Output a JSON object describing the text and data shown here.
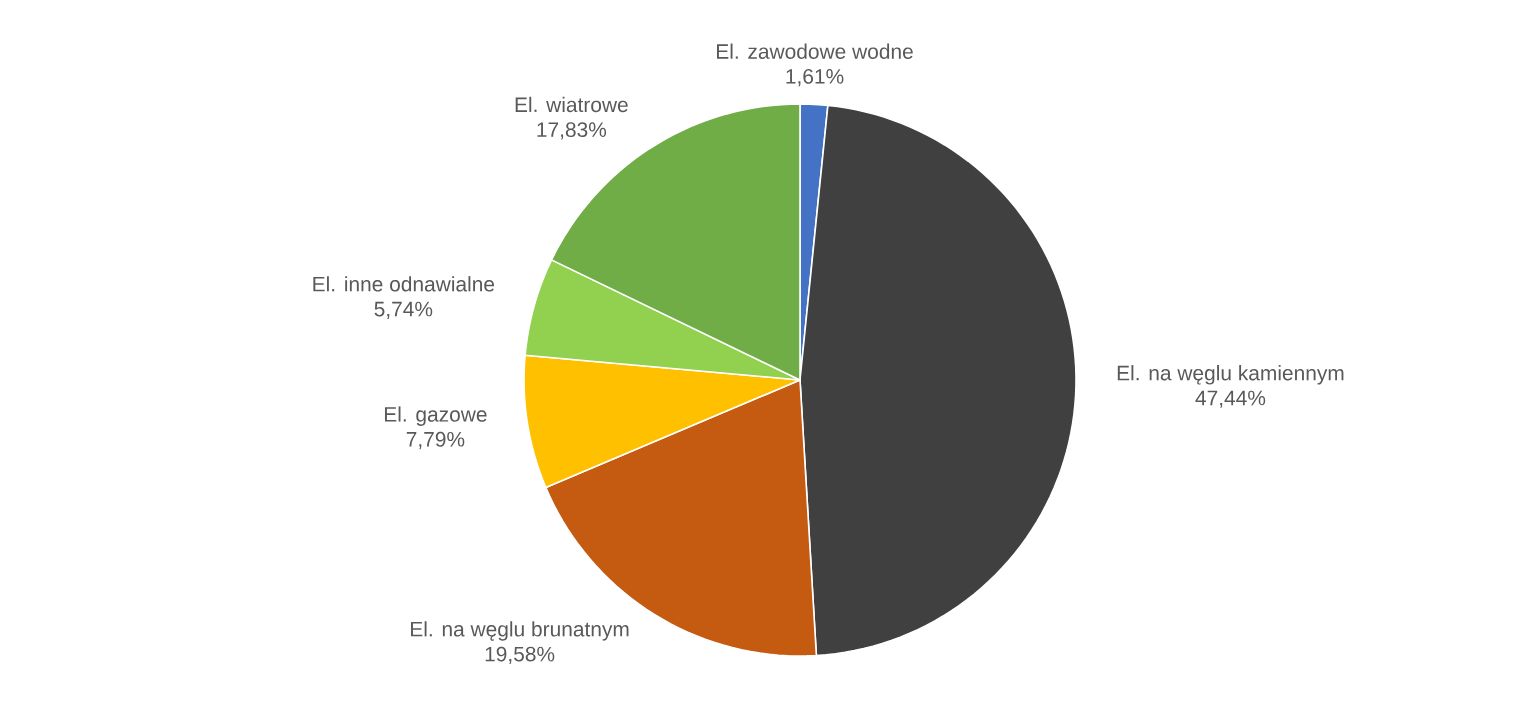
{
  "chart_data": {
    "type": "pie",
    "categories": [
      "El. zawodowe wodne",
      "El. na węglu kamiennym",
      "El. na węglu brunatnym",
      "El. gazowe",
      "El. inne odnawialne",
      "El. wiatrowe"
    ],
    "values": [
      1.61,
      47.44,
      19.58,
      7.79,
      5.74,
      17.83
    ],
    "value_labels": [
      "1,61%",
      "47,44%",
      "19,58%",
      "7,79%",
      "5,74%",
      "17,83%"
    ],
    "colors": [
      "#4472c4",
      "#404040",
      "#c55a11",
      "#ffc000",
      "#92d050",
      "#70ad47"
    ]
  }
}
